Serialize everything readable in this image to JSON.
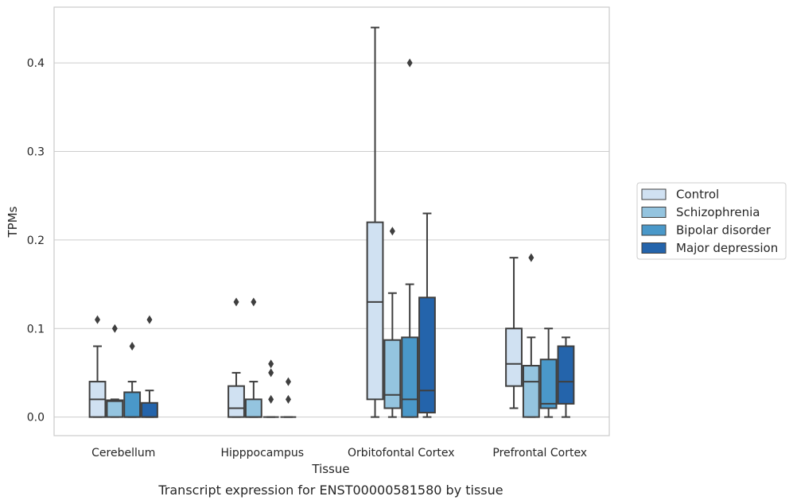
{
  "chart_data": {
    "type": "box",
    "title": "",
    "caption": "Transcript expression for ENST00000581580 by tissue",
    "xlabel": "Tissue",
    "ylabel": "TPMs",
    "ylim": [
      -0.021,
      0.463
    ],
    "yticks": [
      0.0,
      0.1,
      0.2,
      0.3,
      0.4
    ],
    "ytick_labels": [
      "0.0",
      "0.1",
      "0.2",
      "0.3",
      "0.4"
    ],
    "grid": "horizontal",
    "legend_position": "right",
    "categories": [
      "Cerebellum",
      "Hipppocampus",
      "Orbitofontal Cortex",
      "Prefrontal Cortex"
    ],
    "series": [
      {
        "name": "Control",
        "color": "#d0e1f2",
        "boxes": [
          {
            "whisker_low": 0.0,
            "q1": 0.0,
            "median": 0.02,
            "q3": 0.04,
            "whisker_high": 0.08,
            "outliers": [
              0.11
            ]
          },
          {
            "whisker_low": 0.0,
            "q1": 0.0,
            "median": 0.01,
            "q3": 0.035,
            "whisker_high": 0.05,
            "outliers": [
              0.13
            ]
          },
          {
            "whisker_low": 0.0,
            "q1": 0.02,
            "median": 0.13,
            "q3": 0.22,
            "whisker_high": 0.44,
            "outliers": []
          },
          {
            "whisker_low": 0.01,
            "q1": 0.035,
            "median": 0.06,
            "q3": 0.1,
            "whisker_high": 0.18,
            "outliers": []
          }
        ]
      },
      {
        "name": "Schizophrenia",
        "color": "#94c4df",
        "boxes": [
          {
            "whisker_low": 0.0,
            "q1": 0.0,
            "median": 0.018,
            "q3": 0.019,
            "whisker_high": 0.02,
            "outliers": [
              0.1
            ]
          },
          {
            "whisker_low": 0.0,
            "q1": 0.0,
            "median": 0.0,
            "q3": 0.02,
            "whisker_high": 0.04,
            "outliers": [
              0.13
            ]
          },
          {
            "whisker_low": 0.0,
            "q1": 0.01,
            "median": 0.025,
            "q3": 0.087,
            "whisker_high": 0.14,
            "outliers": [
              0.21
            ]
          },
          {
            "whisker_low": 0.0,
            "q1": 0.0,
            "median": 0.04,
            "q3": 0.058,
            "whisker_high": 0.09,
            "outliers": [
              0.18
            ]
          }
        ]
      },
      {
        "name": "Bipolar disorder",
        "color": "#4a98c9",
        "boxes": [
          {
            "whisker_low": 0.0,
            "q1": 0.0,
            "median": 0.0,
            "q3": 0.028,
            "whisker_high": 0.04,
            "outliers": [
              0.08
            ]
          },
          {
            "whisker_low": 0.0,
            "q1": 0.0,
            "median": 0.0,
            "q3": 0.0,
            "whisker_high": 0.0,
            "outliers": [
              0.02,
              0.05,
              0.06
            ]
          },
          {
            "whisker_low": 0.0,
            "q1": 0.0,
            "median": 0.02,
            "q3": 0.09,
            "whisker_high": 0.15,
            "outliers": [
              0.4
            ]
          },
          {
            "whisker_low": 0.0,
            "q1": 0.01,
            "median": 0.015,
            "q3": 0.065,
            "whisker_high": 0.1,
            "outliers": []
          }
        ]
      },
      {
        "name": "Major depression",
        "color": "#2464ab",
        "boxes": [
          {
            "whisker_low": 0.0,
            "q1": 0.0,
            "median": 0.0,
            "q3": 0.016,
            "whisker_high": 0.03,
            "outliers": [
              0.11
            ]
          },
          {
            "whisker_low": 0.0,
            "q1": 0.0,
            "median": 0.0,
            "q3": 0.0,
            "whisker_high": 0.0,
            "outliers": [
              0.02,
              0.04
            ]
          },
          {
            "whisker_low": 0.0,
            "q1": 0.005,
            "median": 0.03,
            "q3": 0.135,
            "whisker_high": 0.23,
            "outliers": []
          },
          {
            "whisker_low": 0.0,
            "q1": 0.015,
            "median": 0.04,
            "q3": 0.08,
            "whisker_high": 0.09,
            "outliers": []
          }
        ]
      }
    ]
  }
}
